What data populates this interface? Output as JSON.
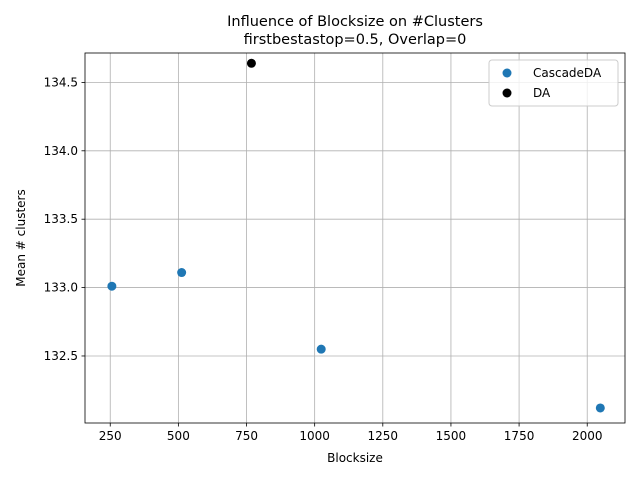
{
  "chart_data": {
    "type": "scatter",
    "title_line1": "Influence of Blocksize on #Clusters",
    "title_line2": "firstbestastop=0.5, Overlap=0",
    "xlabel": "Blocksize",
    "ylabel": "Mean # clusters",
    "xlim": [
      157.4,
      2138.6
    ],
    "ylim": [
      132.01,
      134.715
    ],
    "xticks": [
      250,
      500,
      750,
      1000,
      1250,
      1500,
      1750,
      2000
    ],
    "xtick_labels": [
      "250",
      "500",
      "750",
      "1000",
      "1250",
      "1500",
      "1750",
      "2000"
    ],
    "yticks": [
      132.5,
      133.0,
      133.5,
      134.0,
      134.5
    ],
    "ytick_labels": [
      "132.5",
      "133.0",
      "133.5",
      "134.0",
      "134.5"
    ],
    "grid": true,
    "legend_position": "top-right",
    "series": [
      {
        "name": "CascadeDA",
        "color": "#1f77b4",
        "points": [
          {
            "x": 256,
            "y": 133.01
          },
          {
            "x": 512,
            "y": 133.11
          },
          {
            "x": 1024,
            "y": 132.55
          },
          {
            "x": 2048,
            "y": 132.12
          }
        ]
      },
      {
        "name": "DA",
        "color": "#000000",
        "points": [
          {
            "x": 768,
            "y": 134.64
          }
        ]
      }
    ]
  }
}
